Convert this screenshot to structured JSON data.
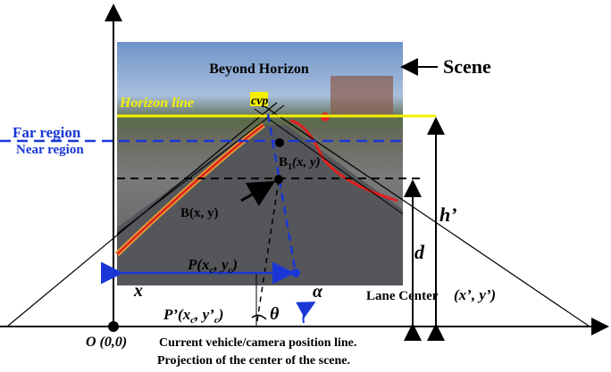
{
  "scene_title": "Beyond Horizon",
  "scene_label": "Scene",
  "horizon_label": "Horizon line",
  "cvp_label": "cvp",
  "far_region": "Far region",
  "near_region": "Near region",
  "b1_label": [
    "B",
    "1",
    "(x, y)"
  ],
  "b_label": "B(x, y)",
  "h_prime": "h’",
  "d_label": "d",
  "p_label": [
    "P(x",
    "c",
    ", y",
    "c",
    ")"
  ],
  "x_label": "x",
  "alpha": "α",
  "lane_center": "Lane Center",
  "lane_center_coords": "(x’, y’)",
  "p_prime_label": [
    "P’(x",
    "c",
    ", y’",
    "c",
    ")"
  ],
  "theta": "θ",
  "origin": "O (0,0)",
  "caption_lines": [
    "Current vehicle/camera position line.",
    "Projection of the center of the scene."
  ]
}
